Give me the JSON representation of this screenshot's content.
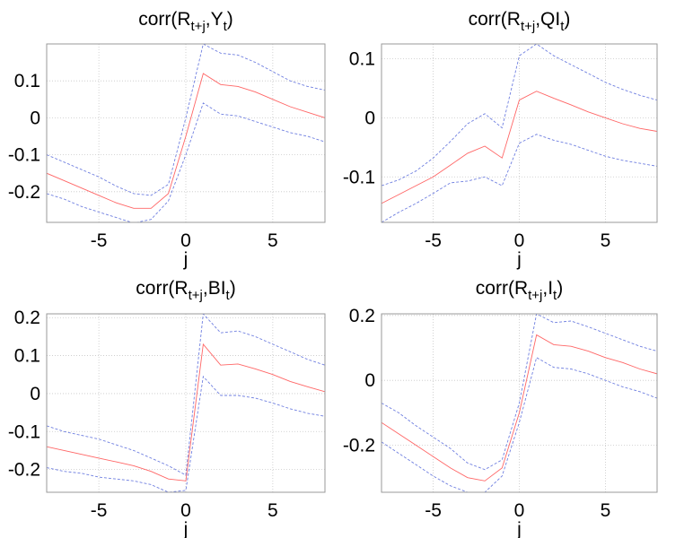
{
  "chart_data": [
    {
      "type": "line",
      "title": {
        "pre": "corr(R",
        "sub1": "t+j",
        "mid": ",Y",
        "sub2": "t",
        "post": ")"
      },
      "xlabel": "j",
      "x": [
        -8,
        -7,
        -6,
        -5,
        -4,
        -3,
        -2,
        -1,
        0,
        1,
        2,
        3,
        4,
        5,
        6,
        7,
        8
      ],
      "xlim": [
        -8,
        8
      ],
      "ylim": [
        -0.283,
        0.2
      ],
      "xticks": [
        -5,
        0,
        5
      ],
      "yticks": [
        -0.2,
        -0.1,
        0,
        0.1
      ],
      "xtick_labels": [
        "-5",
        "0",
        "5"
      ],
      "ytick_labels": [
        "-0.2",
        "-0.1",
        "0",
        "0.1"
      ],
      "grid": true,
      "series": [
        {
          "name": "estimate",
          "color": "#ff6666",
          "style": "solid",
          "values": [
            -0.15,
            -0.17,
            -0.19,
            -0.21,
            -0.23,
            -0.245,
            -0.245,
            -0.205,
            -0.05,
            0.12,
            0.09,
            0.085,
            0.07,
            0.05,
            0.03,
            0.015,
            0.0
          ]
        },
        {
          "name": "upper band",
          "color": "#6f7fe0",
          "style": "dashed",
          "values": [
            -0.1,
            -0.12,
            -0.14,
            -0.16,
            -0.185,
            -0.205,
            -0.21,
            -0.18,
            0.0,
            0.2,
            0.175,
            0.17,
            0.15,
            0.125,
            0.1,
            0.085,
            0.075
          ]
        },
        {
          "name": "lower band",
          "color": "#6f7fe0",
          "style": "dashed",
          "values": [
            -0.205,
            -0.22,
            -0.24,
            -0.255,
            -0.27,
            -0.285,
            -0.275,
            -0.225,
            -0.1,
            0.04,
            0.01,
            0.005,
            -0.01,
            -0.025,
            -0.04,
            -0.05,
            -0.065
          ]
        }
      ]
    },
    {
      "type": "line",
      "title": {
        "pre": "corr(R",
        "sub1": "t+j",
        "mid": ",QI",
        "sub2": "t",
        "post": ")"
      },
      "xlabel": "j",
      "x": [
        -8,
        -7,
        -6,
        -5,
        -4,
        -3,
        -2,
        -1,
        0,
        1,
        2,
        3,
        4,
        5,
        6,
        7,
        8
      ],
      "xlim": [
        -8,
        8
      ],
      "ylim": [
        -0.177,
        0.125
      ],
      "xticks": [
        -5,
        0,
        5
      ],
      "yticks": [
        -0.1,
        0,
        0.1
      ],
      "xtick_labels": [
        "-5",
        "0",
        "5"
      ],
      "ytick_labels": [
        "-0.1",
        "0",
        "0.1"
      ],
      "grid": true,
      "series": [
        {
          "name": "estimate",
          "color": "#ff6666",
          "style": "solid",
          "values": [
            -0.145,
            -0.13,
            -0.115,
            -0.1,
            -0.08,
            -0.06,
            -0.048,
            -0.068,
            0.03,
            0.045,
            0.033,
            0.022,
            0.01,
            0.0,
            -0.01,
            -0.018,
            -0.023
          ]
        },
        {
          "name": "upper band",
          "color": "#6f7fe0",
          "style": "dashed",
          "values": [
            -0.115,
            -0.105,
            -0.09,
            -0.068,
            -0.04,
            -0.01,
            0.007,
            -0.017,
            0.105,
            0.125,
            0.105,
            0.09,
            0.075,
            0.06,
            0.048,
            0.038,
            0.03
          ]
        },
        {
          "name": "lower band",
          "color": "#6f7fe0",
          "style": "dashed",
          "values": [
            -0.177,
            -0.16,
            -0.145,
            -0.128,
            -0.11,
            -0.107,
            -0.1,
            -0.115,
            -0.043,
            -0.028,
            -0.038,
            -0.045,
            -0.055,
            -0.065,
            -0.072,
            -0.077,
            -0.082
          ]
        }
      ]
    },
    {
      "type": "line",
      "title": {
        "pre": "corr(R",
        "sub1": "t+j",
        "mid": ",BI",
        "sub2": "t",
        "post": ")"
      },
      "xlabel": "j",
      "x": [
        -8,
        -7,
        -6,
        -5,
        -4,
        -3,
        -2,
        -1,
        0,
        1,
        2,
        3,
        4,
        5,
        6,
        7,
        8
      ],
      "xlim": [
        -8,
        8
      ],
      "ylim": [
        -0.26,
        0.21
      ],
      "xticks": [
        -5,
        0,
        5
      ],
      "yticks": [
        -0.2,
        -0.1,
        0,
        0.1,
        0.2
      ],
      "xtick_labels": [
        "-5",
        "0",
        "5"
      ],
      "ytick_labels": [
        "-0.2",
        "-0.1",
        "0",
        "0.1",
        "0.2"
      ],
      "grid": true,
      "series": [
        {
          "name": "estimate",
          "color": "#ff6666",
          "style": "solid",
          "values": [
            -0.14,
            -0.15,
            -0.16,
            -0.17,
            -0.18,
            -0.19,
            -0.205,
            -0.225,
            -0.23,
            0.13,
            0.075,
            0.078,
            0.065,
            0.05,
            0.032,
            0.018,
            0.005
          ]
        },
        {
          "name": "upper band",
          "color": "#6f7fe0",
          "style": "dashed",
          "values": [
            -0.085,
            -0.1,
            -0.11,
            -0.12,
            -0.135,
            -0.15,
            -0.17,
            -0.19,
            -0.215,
            0.21,
            0.16,
            0.165,
            0.15,
            0.13,
            0.11,
            0.09,
            0.075
          ]
        },
        {
          "name": "lower band",
          "color": "#6f7fe0",
          "style": "dashed",
          "values": [
            -0.195,
            -0.205,
            -0.21,
            -0.22,
            -0.225,
            -0.23,
            -0.24,
            -0.26,
            -0.255,
            0.045,
            -0.005,
            -0.005,
            -0.012,
            -0.025,
            -0.04,
            -0.052,
            -0.06
          ]
        }
      ]
    },
    {
      "type": "line",
      "title": {
        "pre": "corr(R",
        "sub1": "t+j",
        "mid": ",I",
        "sub2": "t",
        "post": ")"
      },
      "xlabel": "j",
      "x": [
        -8,
        -7,
        -6,
        -5,
        -4,
        -3,
        -2,
        -1,
        0,
        1,
        2,
        3,
        4,
        5,
        6,
        7,
        8
      ],
      "xlim": [
        -8,
        8
      ],
      "ylim": [
        -0.345,
        0.205
      ],
      "xticks": [
        -5,
        0,
        5
      ],
      "yticks": [
        -0.2,
        0,
        0.2
      ],
      "xtick_labels": [
        "-5",
        "0",
        "5"
      ],
      "ytick_labels": [
        "-0.2",
        "0",
        "0.2"
      ],
      "grid": true,
      "series": [
        {
          "name": "estimate",
          "color": "#ff6666",
          "style": "solid",
          "values": [
            -0.13,
            -0.165,
            -0.2,
            -0.235,
            -0.27,
            -0.3,
            -0.31,
            -0.27,
            -0.1,
            0.14,
            0.11,
            0.105,
            0.09,
            0.07,
            0.055,
            0.035,
            0.02
          ]
        },
        {
          "name": "upper band",
          "color": "#6f7fe0",
          "style": "dashed",
          "values": [
            -0.07,
            -0.1,
            -0.14,
            -0.175,
            -0.21,
            -0.255,
            -0.275,
            -0.245,
            -0.07,
            0.205,
            0.178,
            0.183,
            0.165,
            0.145,
            0.125,
            0.105,
            0.09
          ]
        },
        {
          "name": "lower band",
          "color": "#6f7fe0",
          "style": "dashed",
          "values": [
            -0.19,
            -0.225,
            -0.26,
            -0.295,
            -0.325,
            -0.345,
            -0.345,
            -0.295,
            -0.13,
            0.07,
            0.04,
            0.035,
            0.02,
            0.0,
            -0.02,
            -0.035,
            -0.055
          ]
        }
      ]
    }
  ]
}
